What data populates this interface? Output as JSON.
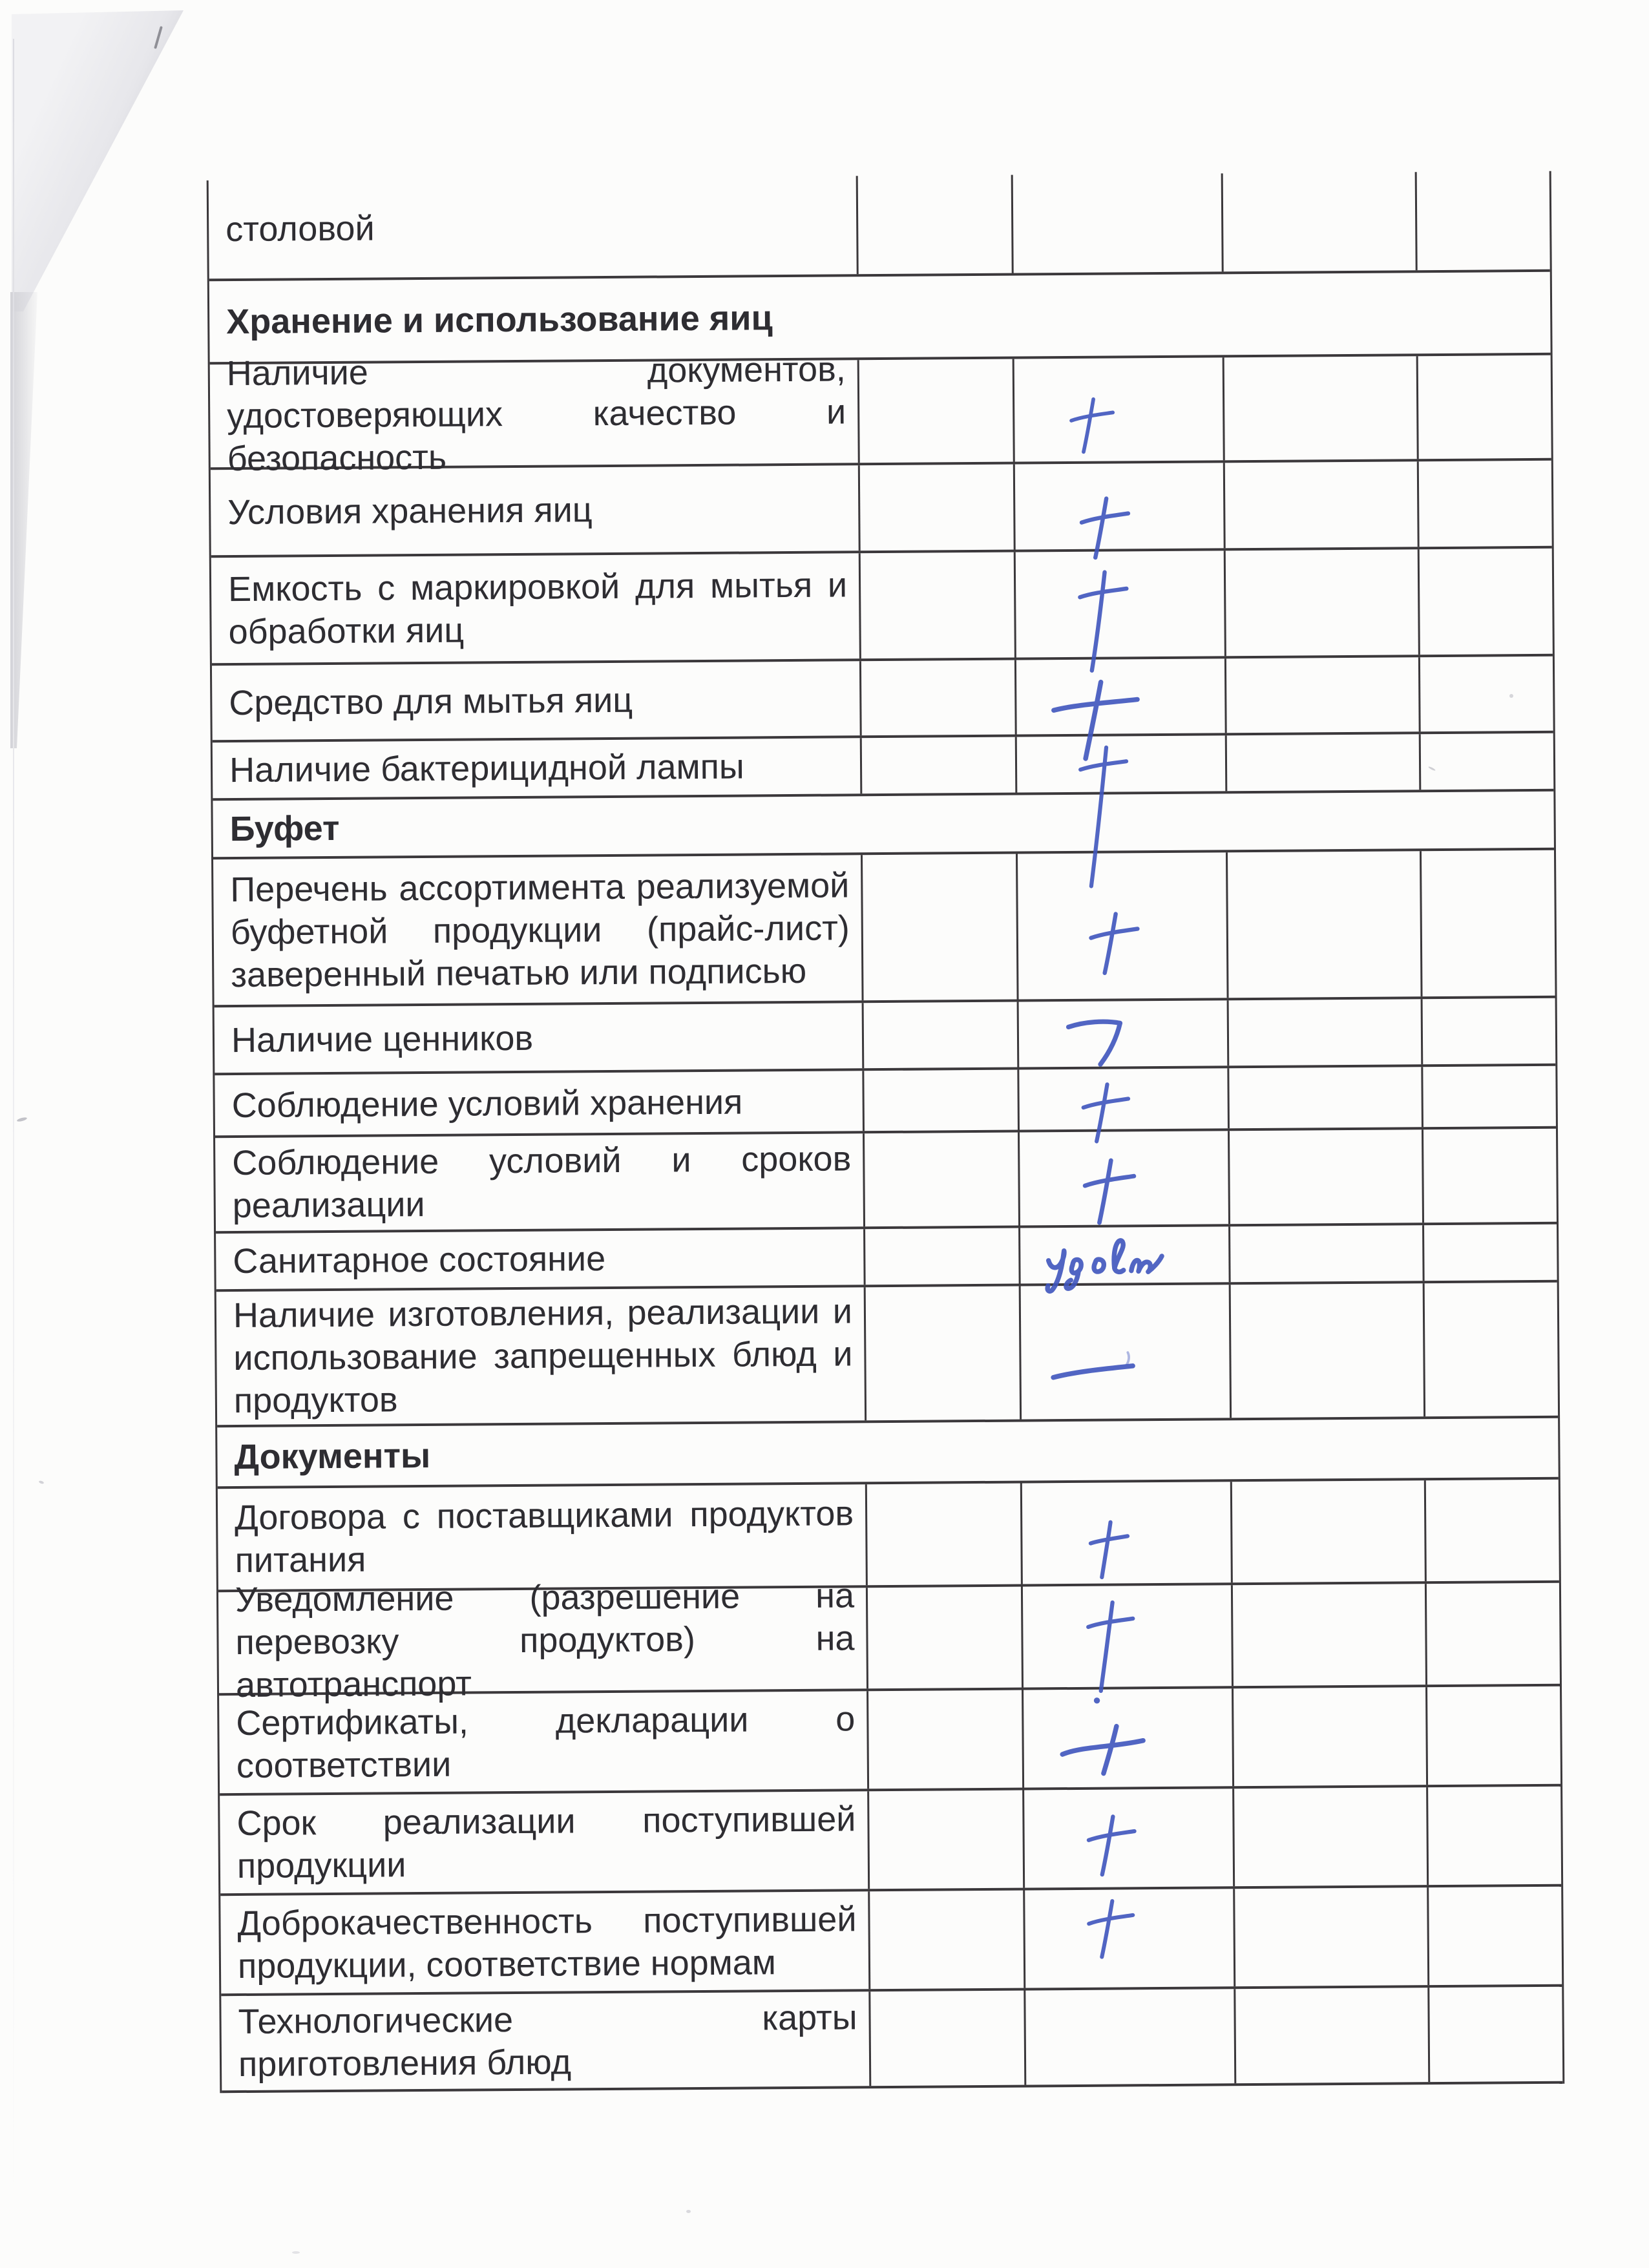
{
  "page": {
    "paper_color": "#fcfcfb",
    "line_color": "#3b383b",
    "text_color": "#2e2d32",
    "ink_color": "#3f55bd",
    "handwritten_note": "удовл",
    "column_count": 5,
    "rows": [
      {
        "type": "item",
        "label": "столовой",
        "mark": "none"
      },
      {
        "type": "section",
        "label": "Хранение и использование яиц"
      },
      {
        "type": "item",
        "label": "Наличие документов, удостоверяющих качество и безопасность",
        "mark": "plus"
      },
      {
        "type": "item",
        "label": "Условия хранения яиц",
        "mark": "plus"
      },
      {
        "type": "item",
        "label": "Емкость с маркировкой для мытья и обработки яиц",
        "mark": "plus-long"
      },
      {
        "type": "item",
        "label": "Средство для мытья яиц",
        "mark": "plus-wide"
      },
      {
        "type": "item",
        "label": "Наличие бактерицидной лампы",
        "mark": "plus-xlong"
      },
      {
        "type": "section",
        "label": "Буфет"
      },
      {
        "type": "item",
        "label": "Перечень ассортимента реализуемой буфетной продукции (прайс-лист) заверенный печатью или подписью",
        "mark": "plus"
      },
      {
        "type": "item",
        "label": "Наличие ценников",
        "mark": "seven"
      },
      {
        "type": "item",
        "label": "Соблюдение условий хранения",
        "mark": "plus"
      },
      {
        "type": "item",
        "label": "Соблюдение условий и сроков реализации",
        "mark": "plus"
      },
      {
        "type": "item",
        "label": "Санитарное состояние",
        "mark": "udovl",
        "mark_text": "удовл"
      },
      {
        "type": "item",
        "label": "Наличие изготовления, реализации и использование запрещенных блюд и продуктов",
        "mark": "dash"
      },
      {
        "type": "section",
        "label": "Документы"
      },
      {
        "type": "item",
        "label": "Договора с поставщиками продуктов питания",
        "mark": "plus-small"
      },
      {
        "type": "item",
        "label": "Уведомление (разрешение на перевозку продуктов) на автотранспорт",
        "mark": "plus-dot"
      },
      {
        "type": "item",
        "label": "Сертификаты, декларации о соответствии",
        "mark": "dash-cross"
      },
      {
        "type": "item",
        "label": "Срок реализации поступившей продукции",
        "mark": "plus"
      },
      {
        "type": "item",
        "label": "Доброкачественность поступившей продукции, соответствие нормам",
        "mark": "plus"
      },
      {
        "type": "item",
        "label": "Технологические карты приготовления блюд",
        "mark": "none"
      }
    ]
  }
}
